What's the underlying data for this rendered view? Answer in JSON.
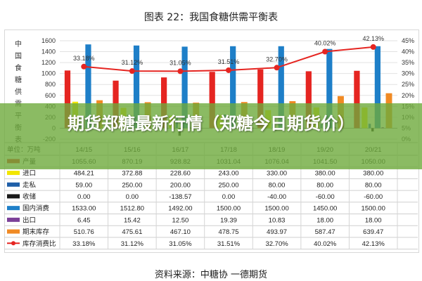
{
  "title": "图表 22：我国食糖供需平衡表",
  "banner": "期货郑糖最新行情（郑糖今日期货价）",
  "source": "资料来源：中糖协 一德期货",
  "colors": {
    "产量": "#e52521",
    "进口": "#f2e600",
    "走私": "#1f5fa8",
    "收储": "#1a1a1a",
    "国内消费": "#1e7fc8",
    "出口": "#7b3f98",
    "期末库存": "#f08a24",
    "库存消费比": "#e52521"
  },
  "chart_data": {
    "type": "bar",
    "title": "图表 22：我国食糖供需平衡表",
    "ylabel": "中国食糖供需平衡表",
    "ylim": [
      -200,
      1600
    ],
    "y2lim": [
      0,
      45
    ],
    "yticks": [
      "-200",
      "0",
      "200",
      "400",
      "600",
      "800",
      "1000",
      "1200",
      "1400",
      "1600"
    ],
    "y2ticks": [
      "0%",
      "5%",
      "10%",
      "15%",
      "20%",
      "25%",
      "30%",
      "35%",
      "40%",
      "45%"
    ],
    "unit_label": "单位：万吨",
    "categories": [
      "14/15",
      "15/16",
      "16/17",
      "17/18",
      "18/19",
      "19/20",
      "20/21"
    ],
    "series": [
      {
        "name": "产量",
        "type": "bar",
        "values": [
          1055.6,
          870.19,
          928.82,
          1031.04,
          1076.04,
          1041.5,
          1050.0
        ],
        "display": [
          "1055.60",
          "870.19",
          "928.82",
          "1031.04",
          "1076.04",
          "1041.50",
          "1050.00"
        ]
      },
      {
        "name": "进口",
        "type": "bar",
        "values": [
          484.21,
          372.88,
          228.6,
          243.0,
          330.0,
          380.0,
          380.0
        ],
        "display": [
          "484.21",
          "372.88",
          "228.60",
          "243.00",
          "330.00",
          "380.00",
          "380.00"
        ]
      },
      {
        "name": "走私",
        "type": "bar",
        "values": [
          59.0,
          250.0,
          200.0,
          250.0,
          80.0,
          80.0,
          80.0
        ],
        "display": [
          "59.00",
          "250.00",
          "200.00",
          "250.00",
          "80.00",
          "80.00",
          "80.00"
        ]
      },
      {
        "name": "收储",
        "type": "bar",
        "values": [
          0.0,
          0.0,
          -138.57,
          0.0,
          -40.0,
          -60.0,
          -60.0
        ],
        "display": [
          "0.00",
          "0.00",
          "-138.57",
          "0.00",
          "-40.00",
          "-60.00",
          "-60.00"
        ]
      },
      {
        "name": "国内消费",
        "type": "bar",
        "values": [
          1533.0,
          1512.8,
          1492.0,
          1500.0,
          1500.0,
          1450.0,
          1500.0
        ],
        "display": [
          "1533.00",
          "1512.80",
          "1492.00",
          "1500.00",
          "1500.00",
          "1450.00",
          "1500.00"
        ]
      },
      {
        "name": "出口",
        "type": "bar",
        "values": [
          6.45,
          15.42,
          12.5,
          19.39,
          10.83,
          18.0,
          18.0
        ],
        "display": [
          "6.45",
          "15.42",
          "12.50",
          "19.39",
          "10.83",
          "18.00",
          "18.00"
        ]
      },
      {
        "name": "期末库存",
        "type": "bar",
        "values": [
          510.76,
          475.61,
          467.1,
          478.75,
          493.97,
          587.47,
          639.47
        ],
        "display": [
          "510.76",
          "475.61",
          "467.10",
          "478.75",
          "493.97",
          "587.47",
          "639.47"
        ]
      },
      {
        "name": "库存消费比",
        "type": "line",
        "axis": "right",
        "values": [
          33.18,
          31.12,
          31.05,
          31.51,
          32.7,
          40.02,
          42.13
        ],
        "display": [
          "33.18%",
          "31.12%",
          "31.05%",
          "31.51%",
          "32.70%",
          "40.02%",
          "42.13%"
        ]
      }
    ]
  }
}
